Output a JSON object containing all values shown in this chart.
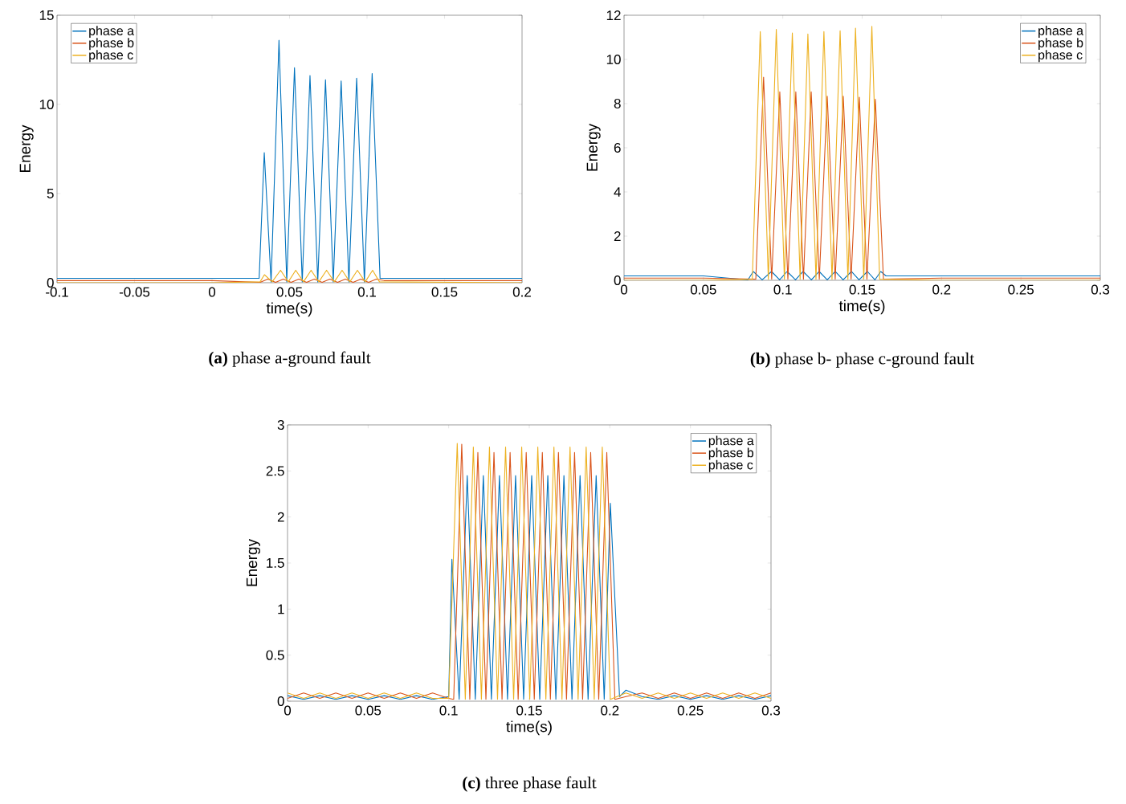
{
  "chart_data": [
    {
      "type": "line",
      "title": "**(a)**  phase a-ground fault",
      "xlabel": "time(s)",
      "ylabel": "Energy",
      "xlim": [
        -0.1,
        0.2
      ],
      "ylim": [
        0,
        15
      ],
      "xticks": [
        -0.1,
        -0.05,
        0,
        0.05,
        0.1,
        0.15,
        0.2
      ],
      "yticks": [
        0,
        5,
        10,
        15
      ],
      "legend": "top left",
      "series": [
        {
          "name": "phase a",
          "color": "#0072bd",
          "x": [
            -0.1,
            -0.05,
            0,
            0.0304,
            0.0337,
            0.0381,
            0.0432,
            0.0482,
            0.0532,
            0.0582,
            0.0632,
            0.0682,
            0.0732,
            0.0782,
            0.0833,
            0.0883,
            0.0933,
            0.0983,
            0.1033,
            0.1084,
            0.15,
            0.2
          ],
          "values": [
            0.25,
            0.25,
            0.25,
            0.25,
            7.3,
            0.05,
            13.6,
            0.05,
            12.06,
            0.05,
            11.62,
            0.05,
            11.38,
            0.05,
            11.32,
            0.05,
            11.47,
            0.05,
            11.73,
            0.25,
            0.25,
            0.25
          ]
        },
        {
          "name": "phase b",
          "color": "#d95319",
          "x": [
            -0.1,
            0,
            0.031,
            0.036,
            0.041,
            0.046,
            0.051,
            0.056,
            0.061,
            0.066,
            0.071,
            0.076,
            0.081,
            0.086,
            0.091,
            0.096,
            0.101,
            0.106,
            0.111,
            0.2
          ],
          "values": [
            0.12,
            0.12,
            0.02,
            0.2,
            0.02,
            0.2,
            0.02,
            0.2,
            0.02,
            0.2,
            0.02,
            0.2,
            0.02,
            0.2,
            0.02,
            0.2,
            0.02,
            0.2,
            0.12,
            0.12
          ]
        },
        {
          "name": "phase c",
          "color": "#edb120",
          "x": [
            -0.1,
            0,
            0.031,
            0.0338,
            0.0388,
            0.0442,
            0.0492,
            0.054,
            0.059,
            0.0639,
            0.0689,
            0.0739,
            0.0789,
            0.0839,
            0.0889,
            0.0938,
            0.0988,
            0.1036,
            0.108,
            0.2
          ],
          "values": [
            0,
            0,
            0.05,
            0.45,
            0.05,
            0.7,
            0.05,
            0.7,
            0.05,
            0.7,
            0.05,
            0.7,
            0.05,
            0.7,
            0.05,
            0.7,
            0.05,
            0.7,
            0.05,
            0
          ]
        }
      ]
    },
    {
      "type": "line",
      "title": "**(b)** phase b- phase c-ground fault",
      "xlabel": "time(s)",
      "ylabel": "Energy",
      "xlim": [
        0,
        0.3
      ],
      "ylim": [
        0,
        12
      ],
      "xticks": [
        0,
        0.05,
        0.1,
        0.15,
        0.2,
        0.25,
        0.3
      ],
      "yticks": [
        0,
        2,
        4,
        6,
        8,
        10,
        12
      ],
      "legend": "top right",
      "series": [
        {
          "name": "phase a",
          "color": "#0072bd",
          "x": [
            0,
            0.05,
            0.078,
            0.0814,
            0.087,
            0.0929,
            0.098,
            0.1027,
            0.108,
            0.1128,
            0.118,
            0.1229,
            0.128,
            0.133,
            0.138,
            0.1432,
            0.148,
            0.1533,
            0.158,
            0.1617,
            0.165,
            0.3
          ],
          "values": [
            0.2,
            0.2,
            0.02,
            0.4,
            0.02,
            0.4,
            0.02,
            0.4,
            0.02,
            0.4,
            0.02,
            0.4,
            0.02,
            0.4,
            0.02,
            0.4,
            0.02,
            0.4,
            0.02,
            0.4,
            0.2,
            0.2
          ]
        },
        {
          "name": "phase b",
          "color": "#d95319",
          "x": [
            0,
            0.05,
            0.083,
            0.0879,
            0.093,
            0.0981,
            0.1032,
            0.1082,
            0.113,
            0.1179,
            0.123,
            0.128,
            0.133,
            0.1381,
            0.143,
            0.1482,
            0.153,
            0.1583,
            0.1634,
            0.2,
            0.3
          ],
          "values": [
            0.1,
            0.1,
            0.05,
            9.2,
            0.05,
            8.53,
            0.05,
            8.53,
            0.05,
            8.53,
            0.05,
            8.33,
            0.05,
            8.33,
            0.05,
            8.29,
            0.05,
            8.2,
            0.05,
            0.1,
            0.1
          ]
        },
        {
          "name": "phase c",
          "color": "#edb120",
          "x": [
            0,
            0.05,
            0.0808,
            0.0858,
            0.0909,
            0.0959,
            0.101,
            0.106,
            0.1109,
            0.1158,
            0.1209,
            0.1259,
            0.131,
            0.1361,
            0.141,
            0.1458,
            0.151,
            0.1561,
            0.161,
            0.2,
            0.3
          ],
          "values": [
            0,
            0,
            0.05,
            11.26,
            0.05,
            11.36,
            0.05,
            11.2,
            0.05,
            11.15,
            0.05,
            11.26,
            0.05,
            11.3,
            0.05,
            11.42,
            0.05,
            11.5,
            0.05,
            0,
            0
          ]
        }
      ]
    },
    {
      "type": "line",
      "title": "**(c)**  three phase fault",
      "xlabel": "time(s)",
      "ylabel": "Energy",
      "xlim": [
        0,
        0.3
      ],
      "ylim": [
        0,
        3
      ],
      "xticks": [
        0,
        0.05,
        0.1,
        0.15,
        0.2,
        0.25,
        0.3
      ],
      "yticks": [
        0,
        0.5,
        1,
        1.5,
        2,
        2.5,
        3
      ],
      "legend": "top right",
      "series": [
        {
          "name": "phase a",
          "color": "#0072bd",
          "x": [
            0,
            0.01,
            0.02,
            0.03,
            0.04,
            0.05,
            0.06,
            0.07,
            0.08,
            0.09,
            0.1,
            0.102,
            0.1065,
            0.1115,
            0.1165,
            0.1215,
            0.1265,
            0.1315,
            0.1365,
            0.1415,
            0.1465,
            0.1515,
            0.1565,
            0.1615,
            0.1665,
            0.1715,
            0.1765,
            0.1815,
            0.1865,
            0.1915,
            0.1965,
            0.2003,
            0.206,
            0.21,
            0.22,
            0.23,
            0.24,
            0.25,
            0.26,
            0.27,
            0.28,
            0.29,
            0.3
          ],
          "values": [
            0.06,
            0.02,
            0.06,
            0.02,
            0.06,
            0.02,
            0.06,
            0.02,
            0.06,
            0.02,
            0.05,
            1.54,
            0.02,
            2.45,
            0.02,
            2.45,
            0.02,
            2.45,
            0.02,
            2.45,
            0.02,
            2.45,
            0.02,
            2.45,
            0.02,
            2.45,
            0.02,
            2.45,
            0.02,
            2.45,
            0.02,
            2.15,
            0.05,
            0.12,
            0.05,
            0.02,
            0.06,
            0.02,
            0.06,
            0.02,
            0.06,
            0.02,
            0.06
          ]
        },
        {
          "name": "phase b",
          "color": "#d95319",
          "x": [
            0,
            0.01,
            0.02,
            0.03,
            0.04,
            0.05,
            0.06,
            0.07,
            0.08,
            0.09,
            0.1,
            0.1031,
            0.1081,
            0.1131,
            0.1181,
            0.1231,
            0.1281,
            0.1331,
            0.1381,
            0.1431,
            0.1481,
            0.1531,
            0.1581,
            0.1631,
            0.1681,
            0.1731,
            0.1781,
            0.1831,
            0.1881,
            0.1931,
            0.1981,
            0.2031,
            0.21,
            0.22,
            0.23,
            0.24,
            0.25,
            0.26,
            0.27,
            0.28,
            0.29,
            0.3
          ],
          "values": [
            0.03,
            0.09,
            0.03,
            0.09,
            0.03,
            0.09,
            0.03,
            0.09,
            0.03,
            0.09,
            0.03,
            0.02,
            2.79,
            0.02,
            2.7,
            0.02,
            2.7,
            0.02,
            2.7,
            0.02,
            2.7,
            0.02,
            2.7,
            0.02,
            2.7,
            0.02,
            2.7,
            0.02,
            2.7,
            0.02,
            2.7,
            0.02,
            0.05,
            0.09,
            0.03,
            0.09,
            0.03,
            0.09,
            0.03,
            0.09,
            0.03,
            0.09
          ]
        },
        {
          "name": "phase c",
          "color": "#edb120",
          "x": [
            0,
            0.01,
            0.02,
            0.03,
            0.04,
            0.05,
            0.06,
            0.07,
            0.08,
            0.09,
            0.1,
            0.1053,
            0.1103,
            0.1153,
            0.1203,
            0.1253,
            0.1303,
            0.1353,
            0.1403,
            0.1453,
            0.1503,
            0.1553,
            0.1603,
            0.1653,
            0.1703,
            0.1753,
            0.1803,
            0.1853,
            0.1903,
            0.1953,
            0.2003,
            0.21,
            0.22,
            0.23,
            0.24,
            0.25,
            0.26,
            0.27,
            0.28,
            0.29,
            0.3
          ],
          "values": [
            0.09,
            0.03,
            0.09,
            0.03,
            0.09,
            0.03,
            0.09,
            0.03,
            0.09,
            0.03,
            0.03,
            2.8,
            0.02,
            2.76,
            0.02,
            2.76,
            0.02,
            2.76,
            0.02,
            2.76,
            0.02,
            2.76,
            0.02,
            2.76,
            0.02,
            2.76,
            0.02,
            2.76,
            0.02,
            2.76,
            0.02,
            0.09,
            0.03,
            0.09,
            0.03,
            0.09,
            0.03,
            0.09,
            0.03,
            0.09,
            0.03
          ]
        }
      ]
    }
  ]
}
